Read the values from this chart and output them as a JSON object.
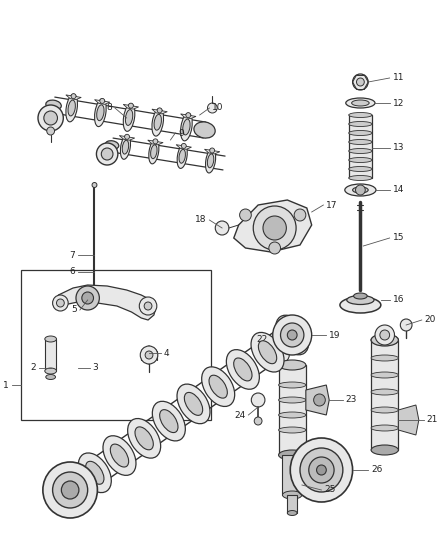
{
  "bg_color": "#ffffff",
  "fig_width": 4.38,
  "fig_height": 5.33,
  "dpi": 100,
  "line_color": "#333333",
  "fill_light": "#e8e8e8",
  "fill_mid": "#cccccc",
  "fill_dark": "#999999",
  "label_fs": 6.5
}
